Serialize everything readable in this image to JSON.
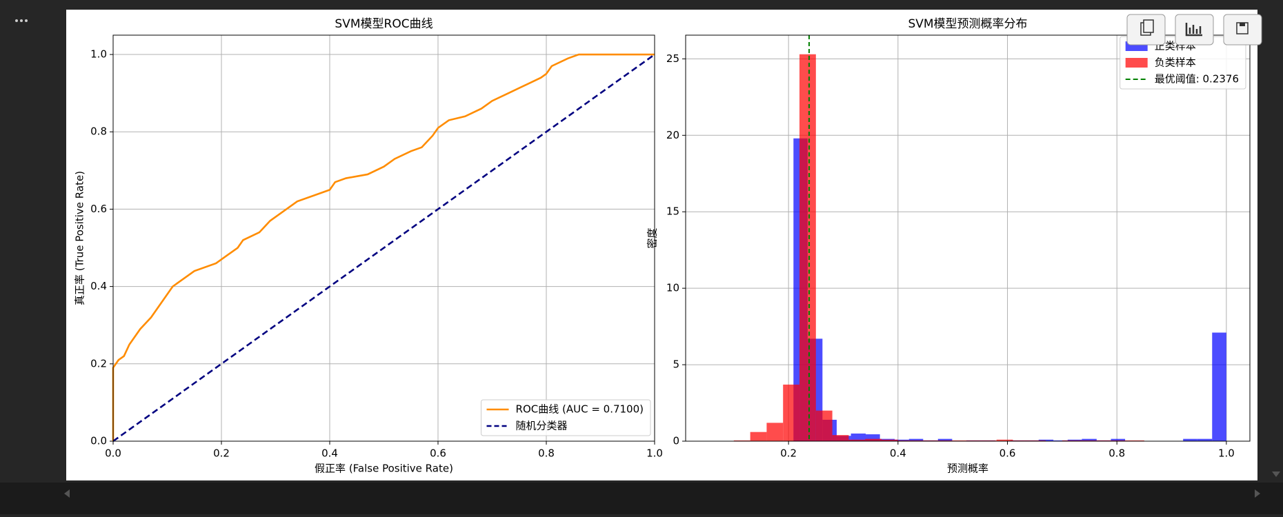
{
  "chart_data": [
    {
      "type": "line",
      "title": "SVM模型ROC曲线",
      "xlabel": "假正率 (False Positive Rate)",
      "ylabel": "真正率 (True Positive Rate)",
      "xlim": [
        0,
        1
      ],
      "ylim": [
        0,
        1.05
      ],
      "xticks": [
        {
          "value": 0,
          "label": "0.0"
        },
        0.2,
        0.4,
        0.6,
        0.8,
        {
          "value": 1,
          "label": "1.0"
        }
      ],
      "yticks": [
        {
          "value": 0,
          "label": "0.0"
        },
        0.2,
        0.4,
        0.6,
        0.8,
        {
          "value": 1,
          "label": "1.0"
        }
      ],
      "grid": true,
      "legend": "lower right",
      "series": [
        {
          "name": "ROC曲线 (AUC = 0.7100)",
          "color": "#ff8c00",
          "style": "solid",
          "x": [
            0,
            0,
            0.01,
            0.02,
            0.03,
            0.05,
            0.07,
            0.1,
            0.11,
            0.15,
            0.19,
            0.21,
            0.23,
            0.24,
            0.27,
            0.29,
            0.32,
            0.34,
            0.38,
            0.4,
            0.41,
            0.43,
            0.47,
            0.5,
            0.52,
            0.55,
            0.57,
            0.59,
            0.6,
            0.62,
            0.65,
            0.68,
            0.7,
            0.73,
            0.76,
            0.79,
            0.8,
            0.81,
            0.84,
            0.86,
            1.0
          ],
          "y": [
            0,
            0.19,
            0.21,
            0.22,
            0.25,
            0.29,
            0.32,
            0.38,
            0.4,
            0.44,
            0.46,
            0.48,
            0.5,
            0.52,
            0.54,
            0.57,
            0.6,
            0.62,
            0.64,
            0.65,
            0.67,
            0.68,
            0.69,
            0.71,
            0.73,
            0.75,
            0.76,
            0.79,
            0.81,
            0.83,
            0.84,
            0.86,
            0.88,
            0.9,
            0.92,
            0.94,
            0.95,
            0.97,
            0.99,
            1.0,
            1.0
          ]
        },
        {
          "name": "随机分类器",
          "color": "#000080",
          "style": "dashed",
          "x": [
            0,
            1
          ],
          "y": [
            0,
            1
          ]
        }
      ]
    },
    {
      "type": "histogram",
      "title": "SVM模型预测概率分布",
      "xlabel": "预测概率",
      "ylabel": "密度",
      "xlim": [
        0.012,
        1.043
      ],
      "ylim": [
        0,
        26.55
      ],
      "xticks": [
        0.2,
        0.4,
        0.6,
        0.8,
        {
          "value": 1,
          "label": "1.0"
        }
      ],
      "yticks": [
        0,
        5,
        10,
        15,
        20,
        25
      ],
      "grid": true,
      "legend": "upper right",
      "series": [
        {
          "name": "正类样本",
          "color": "#0000ff",
          "bins": [
            0.209,
            0.235,
            0.262,
            0.288,
            0.314,
            0.341,
            0.367,
            0.394,
            0.42,
            0.446,
            0.473,
            0.499,
            0.525,
            0.552,
            0.578,
            0.605,
            0.631,
            0.657,
            0.684,
            0.71,
            0.736,
            0.763,
            0.789,
            0.815,
            0.842,
            0.868,
            0.894,
            0.921,
            0.947,
            0.974,
            1.0
          ],
          "values": [
            19.8,
            6.7,
            1.4,
            0.35,
            0.5,
            0.45,
            0.15,
            0.1,
            0.15,
            0.05,
            0.15,
            0,
            0.05,
            0.05,
            0,
            0.05,
            0.05,
            0.1,
            0.05,
            0.1,
            0.15,
            0.05,
            0.15,
            0,
            0,
            0,
            0,
            0.15,
            0.15,
            7.1
          ]
        },
        {
          "name": "负类样本",
          "color": "#ff0000",
          "bins": [
            0.1,
            0.13,
            0.16,
            0.19,
            0.22,
            0.25,
            0.28,
            0.31,
            0.34,
            0.37,
            0.4,
            0.43,
            0.46,
            0.49,
            0.52,
            0.55,
            0.58,
            0.61,
            0.64,
            0.67,
            0.7,
            0.73,
            0.76,
            0.79,
            0.82,
            0.85,
            0.88,
            0.91,
            0.94,
            0.97
          ],
          "values": [
            0.05,
            0.6,
            1.2,
            3.7,
            25.3,
            2.0,
            0.4,
            0.1,
            0.15,
            0.1,
            0.05,
            0.05,
            0.05,
            0.05,
            0.05,
            0.05,
            0.1,
            0.05,
            0.05,
            0,
            0.05,
            0.05,
            0.05,
            0.05,
            0.05,
            0,
            0,
            0,
            0
          ]
        }
      ],
      "threshold": {
        "name": "最优阈值: 0.2376",
        "value": 0.2376,
        "color": "#008000"
      }
    }
  ]
}
